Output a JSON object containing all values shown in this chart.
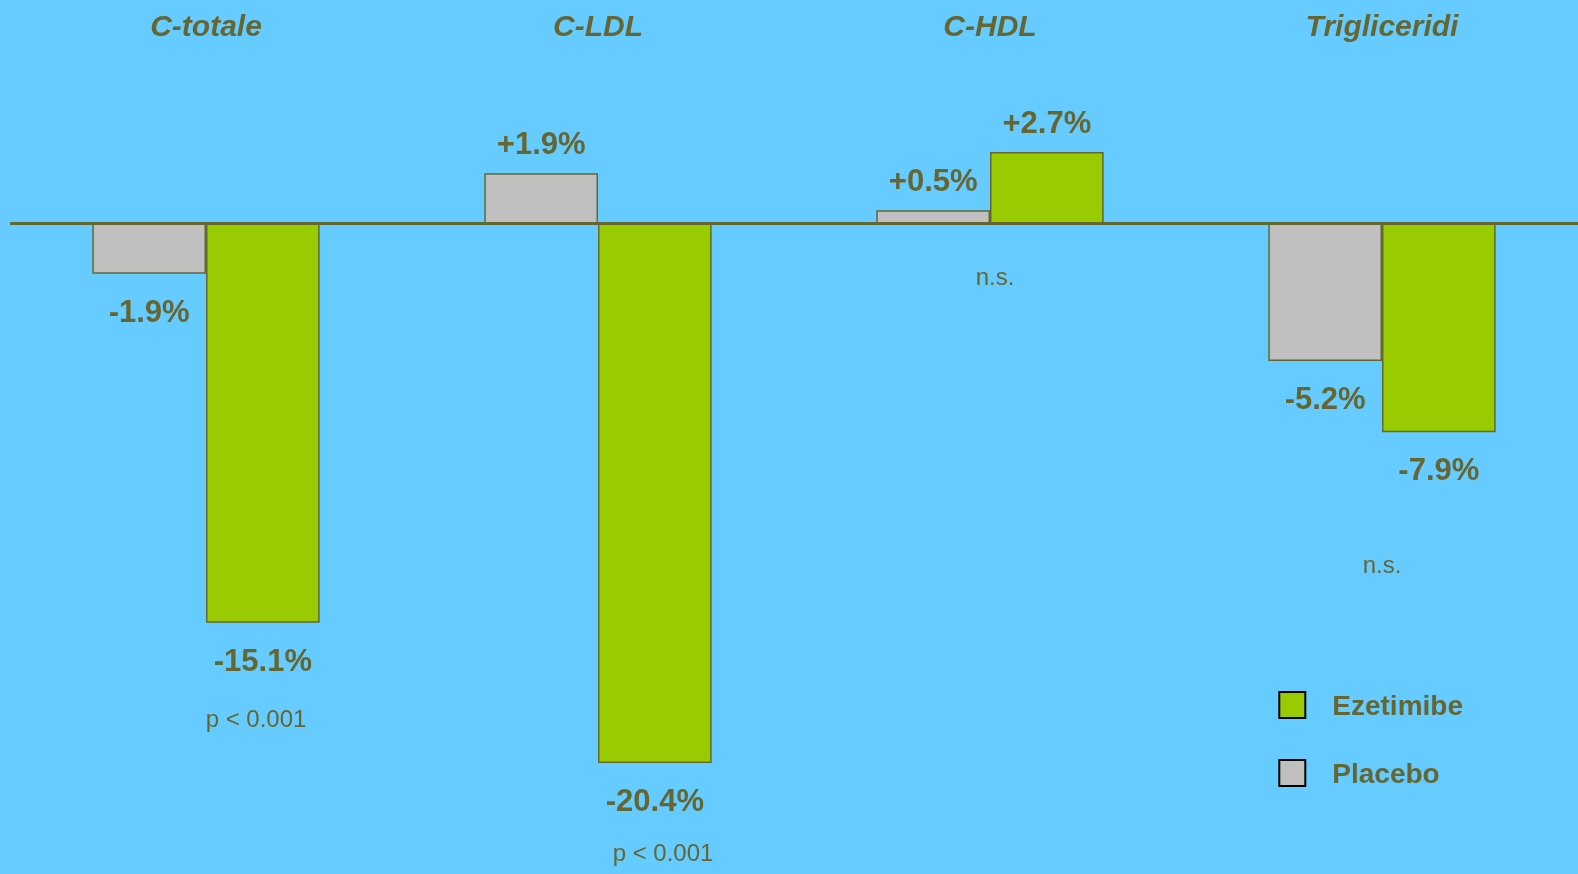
{
  "chart_data": {
    "type": "bar",
    "categories": [
      "C-totale",
      "C-LDL",
      "C-HDL",
      "Trigliceridi"
    ],
    "series": [
      {
        "name": "Placebo",
        "color": "#c0c0c0",
        "values": [
          -1.9,
          1.9,
          0.5,
          -5.2
        ],
        "value_labels": [
          "-1.9%",
          "+1.9%",
          "+0.5%",
          "-5.2%"
        ]
      },
      {
        "name": "Ezetimibe",
        "color": "#99cc00",
        "values": [
          -15.1,
          -20.4,
          2.7,
          -7.9
        ],
        "value_labels": [
          "-15.1%",
          "-20.4%",
          "+2.7%",
          "-7.9%"
        ]
      }
    ],
    "tick_labels": "x",
    "grid": false,
    "ref_lines": [
      {
        "axis": "y",
        "value": 0,
        "color": "#666633"
      }
    ],
    "legend": "bottom right",
    "annotations": [
      "p < 0.001",
      "p < 0.001",
      "n.s.",
      "n.s."
    ]
  }
}
